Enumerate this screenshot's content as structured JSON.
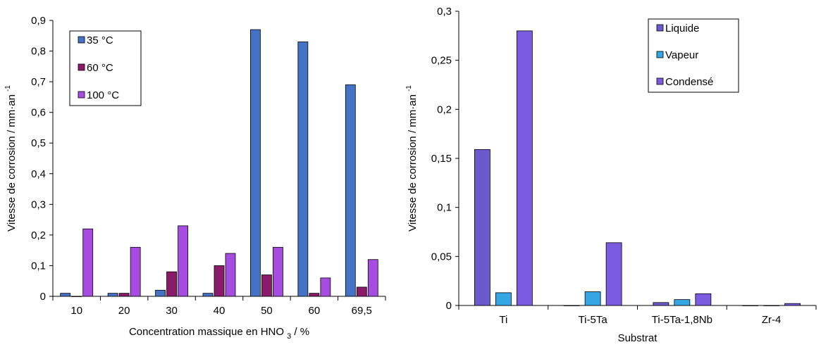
{
  "chart_data": [
    {
      "type": "bar",
      "categories": [
        "10",
        "20",
        "30",
        "40",
        "50",
        "60",
        "69,5"
      ],
      "series": [
        {
          "name": "35 °C",
          "color": "#4472c4",
          "values": [
            0.01,
            0.01,
            0.02,
            0.01,
            0.87,
            0.83,
            0.69
          ]
        },
        {
          "name": "60 °C",
          "color": "#8b1a6b",
          "values": [
            0.0,
            0.01,
            0.08,
            0.1,
            0.07,
            0.01,
            0.03
          ]
        },
        {
          "name": "100 °C",
          "color": "#a64ce0",
          "values": [
            0.22,
            0.16,
            0.23,
            0.14,
            0.16,
            0.06,
            0.12
          ]
        }
      ],
      "yticks": [
        "0",
        "0,1",
        "0,2",
        "0,3",
        "0,4",
        "0,5",
        "0,6",
        "0,7",
        "0,8",
        "0,9"
      ],
      "ylim": [
        0,
        0.9
      ],
      "ylabel": "Vitesse de corrosion / mm·an",
      "ylabel_sup": "-1",
      "xlabel": "Concentration massique en HNO",
      "xlabel_sub": "3",
      "xlabel_suffix": " / %",
      "legend_position": "top-left",
      "grid": false
    },
    {
      "type": "bar",
      "categories": [
        "Ti",
        "Ti-5Ta",
        "Ti-5Ta-1,8Nb",
        "Zr-4"
      ],
      "series": [
        {
          "name": "Liquide",
          "color": "#6a5acd",
          "values": [
            0.159,
            0.0,
            0.003,
            0.0
          ]
        },
        {
          "name": "Vapeur",
          "color": "#33a6e3",
          "values": [
            0.013,
            0.014,
            0.006,
            0.0
          ]
        },
        {
          "name": "Condensé",
          "color": "#7b5ce0",
          "values": [
            0.28,
            0.064,
            0.012,
            0.002
          ]
        }
      ],
      "yticks": [
        "0",
        "0,05",
        "0,1",
        "0,15",
        "0,2",
        "0,25",
        "0,3"
      ],
      "ylim": [
        0,
        0.3
      ],
      "ylabel": "Vitesse de corrosion / mm·an",
      "ylabel_sup": "-1",
      "xlabel": "Substrat",
      "legend_position": "top-right",
      "grid": false
    }
  ]
}
